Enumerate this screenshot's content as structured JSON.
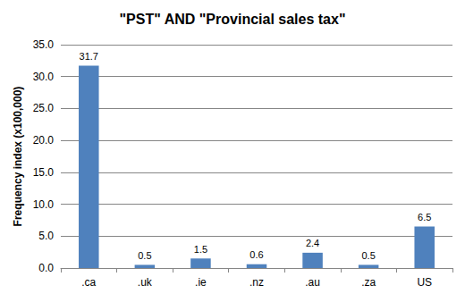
{
  "chart_data": {
    "type": "bar",
    "title": "\"PST\" AND \"Provincial sales tax\"",
    "y_label": "Frequency index (x100,000)",
    "categories": [
      ".ca",
      ".uk",
      ".ie",
      ".nz",
      ".au",
      ".za",
      "US"
    ],
    "values": [
      31.7,
      0.5,
      1.5,
      0.6,
      2.4,
      0.5,
      6.5
    ],
    "color": "#4f81bd",
    "ylim": [
      0,
      35
    ],
    "yticks": [
      {
        "value": 0,
        "label": "0.0"
      },
      {
        "value": 5,
        "label": "5.0"
      },
      {
        "value": 10,
        "label": "10.0"
      },
      {
        "value": 15,
        "label": "15.0"
      },
      {
        "value": 20,
        "label": "20.0"
      },
      {
        "value": 25,
        "label": "25.0"
      },
      {
        "value": 30,
        "label": "30.0"
      },
      {
        "value": 35,
        "label": "35.0"
      }
    ],
    "grid": true,
    "data_labels": true
  }
}
